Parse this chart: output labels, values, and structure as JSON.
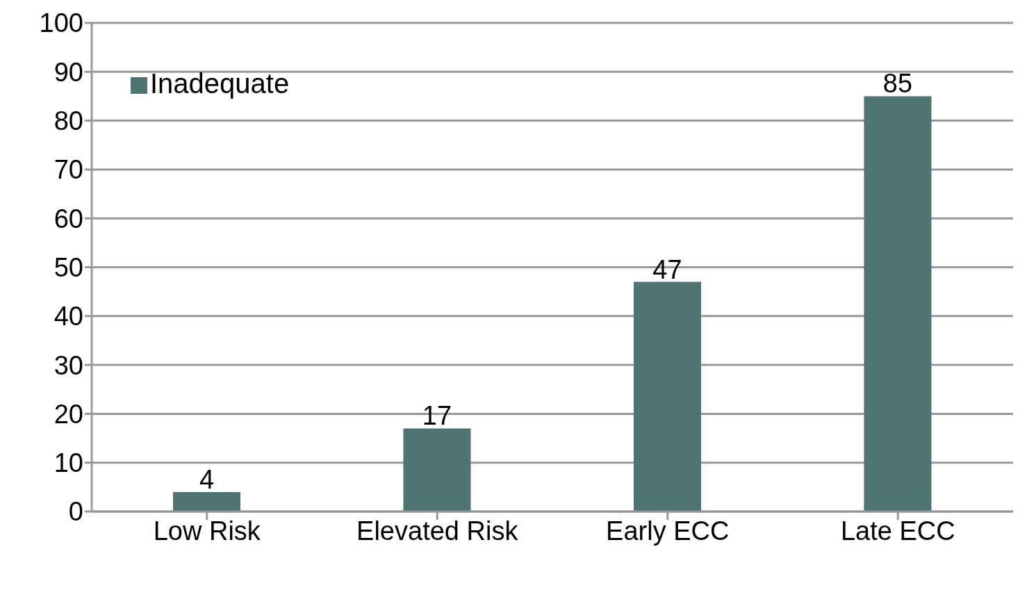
{
  "chart_data": {
    "type": "bar",
    "categories": [
      "Low Risk",
      "Elevated Risk",
      "Early ECC",
      "Late ECC"
    ],
    "series": [
      {
        "name": "Inadequate",
        "color": "#4f7572",
        "values": [
          4,
          17,
          47,
          85
        ]
      }
    ],
    "ylim": [
      0,
      100
    ],
    "yticks": [
      0,
      10,
      20,
      30,
      40,
      50,
      60,
      70,
      80,
      90,
      100
    ],
    "grid": "y",
    "legend": "top left",
    "data_labels": true
  }
}
